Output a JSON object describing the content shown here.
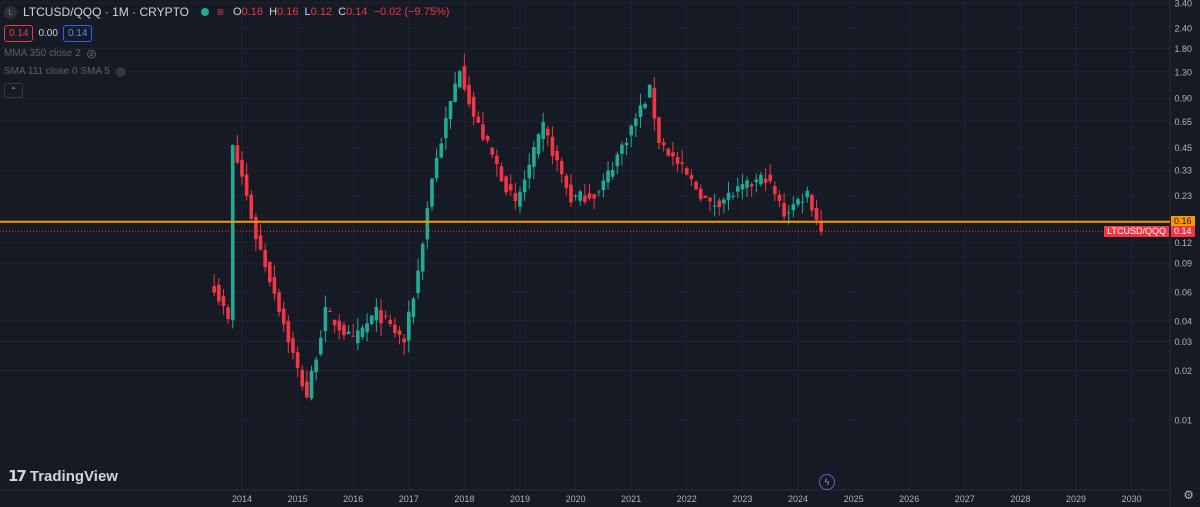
{
  "header": {
    "badge": "L",
    "symbol_title": "LTCUSD/QQQ · 1M · CRYPTO",
    "ohlc": [
      {
        "k": "O",
        "v": "0.16"
      },
      {
        "k": "H",
        "v": "0.16"
      },
      {
        "k": "L",
        "v": "0.12"
      },
      {
        "k": "C",
        "v": "0.14"
      },
      {
        "k": "",
        "v": "−0.02 (−9.75%)"
      }
    ],
    "bid": "0.14",
    "spread": "0.00",
    "ask": "0.14",
    "indicators": [
      "MMA 350 close 2",
      "SMA 111 close 0 SMA 5"
    ]
  },
  "colors": {
    "background": "#161a25",
    "up": "#22ab94",
    "down": "#f23645",
    "horizontal_line": "#ff9800"
  },
  "chart_data": {
    "type": "candlestick",
    "series": [
      {
        "name": "LTCUSD/QQQ"
      }
    ],
    "y_scale": "log",
    "y_ticks": [
      0.01,
      0.02,
      0.03,
      0.04,
      0.06,
      0.09,
      0.12,
      0.16,
      0.23,
      0.33,
      0.45,
      0.65,
      0.9,
      1.3,
      1.8,
      2.4,
      3.4
    ],
    "y_tick_labels": [
      "0.01",
      "0.02",
      "0.03",
      "0.04",
      "0.06",
      "0.09",
      "0.12",
      "0.16",
      "0.23",
      "0.33",
      "0.45",
      "0.65",
      "0.90",
      "1.30",
      "1.80",
      "2.40",
      "3.40"
    ],
    "x_ticks": [
      "2014",
      "2015",
      "2016",
      "2017",
      "2018",
      "2019",
      "2020",
      "2021",
      "2022",
      "2023",
      "2024",
      "2025",
      "2026",
      "2027",
      "2028",
      "2029",
      "2030"
    ],
    "x_range": [
      "2013-01",
      "2030-12"
    ],
    "horizontal_line": {
      "value": 0.16,
      "label": "0.16"
    },
    "last_price": {
      "value": 0.14,
      "label": "0.14",
      "series_tag": "LTCUSD/QQQ"
    },
    "grid": true,
    "keypoints": [
      {
        "date": "2013-07",
        "close": 0.065
      },
      {
        "date": "2013-10",
        "close": 0.04
      },
      {
        "date": "2013-11",
        "close": 0.45
      },
      {
        "date": "2014-01",
        "close": 0.3
      },
      {
        "date": "2014-04",
        "close": 0.13
      },
      {
        "date": "2014-08",
        "close": 0.06
      },
      {
        "date": "2015-01",
        "close": 0.02
      },
      {
        "date": "2015-03",
        "close": 0.014
      },
      {
        "date": "2015-07",
        "close": 0.045
      },
      {
        "date": "2016-01",
        "close": 0.03
      },
      {
        "date": "2016-06",
        "close": 0.045
      },
      {
        "date": "2016-12",
        "close": 0.03
      },
      {
        "date": "2017-03",
        "close": 0.08
      },
      {
        "date": "2017-06",
        "close": 0.3
      },
      {
        "date": "2017-12",
        "close": 1.4
      },
      {
        "date": "2018-03",
        "close": 0.7
      },
      {
        "date": "2018-12",
        "close": 0.2
      },
      {
        "date": "2019-06",
        "close": 0.6
      },
      {
        "date": "2019-12",
        "close": 0.22
      },
      {
        "date": "2020-06",
        "close": 0.24
      },
      {
        "date": "2021-05",
        "close": 1.0
      },
      {
        "date": "2021-07",
        "close": 0.5
      },
      {
        "date": "2022-06",
        "close": 0.2
      },
      {
        "date": "2023-06",
        "close": 0.3
      },
      {
        "date": "2023-10",
        "close": 0.18
      },
      {
        "date": "2024-03",
        "close": 0.24
      },
      {
        "date": "2024-06",
        "close": 0.14
      }
    ]
  },
  "footer": {
    "brand": "TradingView"
  }
}
